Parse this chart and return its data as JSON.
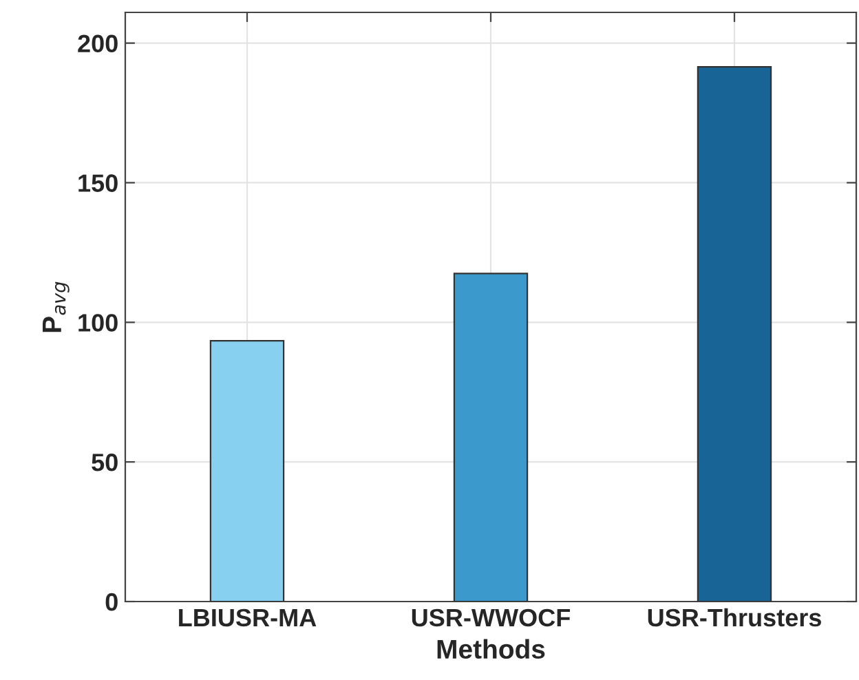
{
  "chart_data": {
    "type": "bar",
    "xlabel": "Methods",
    "ylabel": "P$_{avg}$",
    "categories": [
      "LBIUSR-MA",
      "USR-WWOCF",
      "USR-Thrusters"
    ],
    "values": [
      93.4,
      117.5,
      191.5
    ],
    "colors": [
      "#87d0f0",
      "#3b9acb",
      "#186496"
    ],
    "ylim": [
      0,
      211
    ],
    "yticks": [
      0,
      50,
      100,
      150,
      200
    ],
    "grid": true
  }
}
